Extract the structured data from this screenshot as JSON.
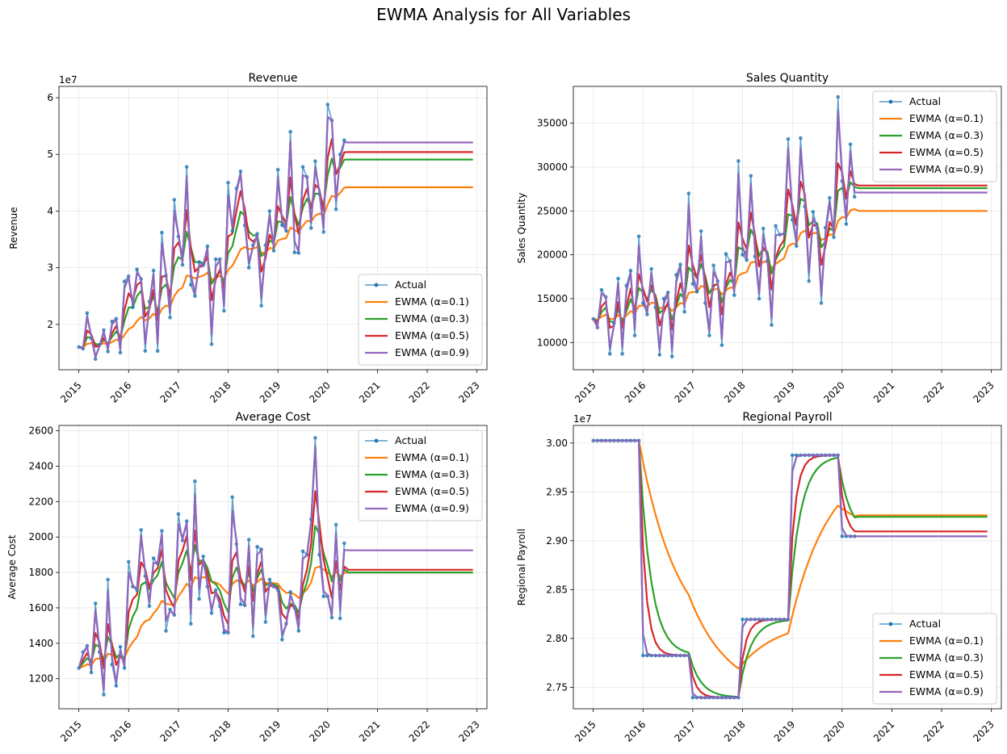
{
  "suptitle": "EWMA Analysis for All Variables",
  "legend_labels": [
    "Actual",
    "EWMA (α=0.1)",
    "EWMA (α=0.3)",
    "EWMA (α=0.5)",
    "EWMA (α=0.9)"
  ],
  "colors": {
    "actual": "#1f77b4",
    "a01": "#ff7f0e",
    "a03": "#2ca02c",
    "a05": "#d62728",
    "a09": "#9467bd"
  },
  "chart_data": [
    {
      "type": "line",
      "title": "Revenue",
      "ylabel": "Revenue",
      "xlabel": "",
      "x_ticks": [
        "2015",
        "2016",
        "2017",
        "2018",
        "2019",
        "2020",
        "2021",
        "2022",
        "2023"
      ],
      "y_ticks": [
        "2",
        "3",
        "4",
        "5",
        "6"
      ],
      "y_tick_values": [
        20000000.0,
        30000000.0,
        40000000.0,
        50000000.0,
        60000000.0
      ],
      "offset_text": "1e7",
      "xlim": [
        2014.6,
        2023.2
      ],
      "ylim": [
        12000000.0,
        62000000.0
      ],
      "legend_loc": "lower right",
      "grid": true,
      "actual": [
        16.0,
        15.7,
        22.0,
        17.5,
        13.9,
        16.4,
        19.0,
        15.2,
        20.5,
        21.0,
        15.0,
        27.6,
        28.5,
        23.0,
        29.7,
        28.0,
        15.3,
        24.0,
        29.5,
        15.3,
        36.2,
        28.6,
        21.2,
        42.0,
        35.5,
        30.5,
        47.8,
        27.0,
        25.0,
        31.0,
        30.5,
        33.8,
        16.5,
        31.5,
        31.5,
        22.4,
        45.0,
        36.5,
        44.0,
        47.0,
        37.5,
        30.0,
        34.0,
        36.0,
        23.3,
        34.0,
        40.0,
        33.0,
        47.3,
        37.5,
        36.5,
        54.0,
        32.7,
        32.6,
        47.8,
        46.0,
        37.0,
        48.8,
        43.0,
        36.3,
        58.8,
        56.0,
        40.3,
        50.0,
        52.5
      ],
      "forecast": {
        "a01": 44.2,
        "a03": 49.1,
        "a05": 50.4,
        "a09": 52.1,
        "until": 2022.92
      },
      "scale": 1000000.0
    },
    {
      "type": "line",
      "title": "Sales Quantity",
      "ylabel": "Sales Quantity",
      "xlabel": "",
      "x_ticks": [
        "2015",
        "2016",
        "2017",
        "2018",
        "2019",
        "2020",
        "2021",
        "2022",
        "2023"
      ],
      "y_ticks": [
        "10000",
        "15000",
        "20000",
        "25000",
        "30000",
        "35000"
      ],
      "y_tick_values": [
        10000,
        15000,
        20000,
        25000,
        30000,
        35000
      ],
      "offset_text": "",
      "xlim": [
        2014.6,
        2023.2
      ],
      "ylim": [
        6900,
        39200
      ],
      "legend_loc": "upper right",
      "grid": true,
      "actual": [
        12700,
        11700,
        16000,
        15200,
        8700,
        12200,
        17300,
        8700,
        16500,
        18200,
        10800,
        22100,
        14500,
        13200,
        18400,
        14000,
        8600,
        15000,
        15700,
        8400,
        17700,
        18900,
        13500,
        27000,
        16700,
        15800,
        22700,
        14500,
        10800,
        18800,
        17000,
        9700,
        20100,
        19300,
        15400,
        30700,
        20000,
        19400,
        29000,
        19800,
        15000,
        23000,
        19300,
        12000,
        23300,
        22300,
        22400,
        33200,
        24000,
        21000,
        33300,
        25500,
        17000,
        24900,
        23000,
        14500,
        23100,
        26500,
        22000,
        38000,
        28400,
        23500,
        32600,
        26600
      ],
      "forecast": {
        "a01": 25000,
        "a03": 27600,
        "a05": 27900,
        "a09": 27100,
        "until": 2022.92
      },
      "scale": 1
    },
    {
      "type": "line",
      "title": "Average Cost",
      "ylabel": "Average Cost",
      "xlabel": "",
      "x_ticks": [
        "2015",
        "2016",
        "2017",
        "2018",
        "2019",
        "2020",
        "2021",
        "2022",
        "2023"
      ],
      "y_ticks": [
        "1200",
        "1400",
        "1600",
        "1800",
        "2000",
        "2200",
        "2400",
        "2600"
      ],
      "y_tick_values": [
        1200,
        1400,
        1600,
        1800,
        2000,
        2200,
        2400,
        2600
      ],
      "offset_text": "",
      "xlim": [
        2014.6,
        2023.2
      ],
      "ylim": [
        1030,
        2630
      ],
      "legend_loc": "upper right",
      "grid": true,
      "actual": [
        1260,
        1350,
        1385,
        1235,
        1625,
        1350,
        1110,
        1760,
        1280,
        1160,
        1380,
        1260,
        1860,
        1720,
        1700,
        2040,
        1780,
        1610,
        1880,
        1850,
        2035,
        1470,
        1590,
        1560,
        2130,
        1980,
        2090,
        1510,
        2315,
        1650,
        1890,
        1720,
        1570,
        1700,
        1610,
        1460,
        1460,
        2225,
        1960,
        1620,
        1615,
        1985,
        1440,
        1945,
        1930,
        1520,
        1760,
        1720,
        1700,
        1420,
        1510,
        1690,
        1600,
        1470,
        1920,
        1900,
        2100,
        2560,
        1900,
        1665,
        1665,
        1545,
        2070,
        1540,
        1965
      ],
      "forecast": {
        "a01": 1800,
        "a03": 1800,
        "a05": 1815,
        "a09": 1925,
        "until": 2022.92
      },
      "scale": 1
    },
    {
      "type": "line",
      "title": "Regional Payroll",
      "ylabel": "Regional Payroll",
      "xlabel": "",
      "x_ticks": [
        "2015",
        "2016",
        "2017",
        "2018",
        "2019",
        "2020",
        "2021",
        "2022",
        "2023"
      ],
      "y_ticks": [
        "2.75",
        "2.80",
        "2.85",
        "2.90",
        "2.95",
        "3.00"
      ],
      "y_tick_values": [
        27500000.0,
        28000000.0,
        28500000.0,
        29000000.0,
        29500000.0,
        30000000.0
      ],
      "offset_text": "1e7",
      "xlim": [
        2014.6,
        2023.2
      ],
      "ylim": [
        27280000.0,
        30180000.0
      ],
      "legend_loc": "lower right",
      "grid": true,
      "segments": [
        {
          "from": 2015.0,
          "to": 2015.92,
          "value": 30025000.0
        },
        {
          "from": 2016.0,
          "to": 2016.92,
          "value": 27825000.0
        },
        {
          "from": 2017.0,
          "to": 2017.92,
          "value": 27395000.0
        },
        {
          "from": 2018.0,
          "to": 2018.92,
          "value": 28195000.0
        },
        {
          "from": 2019.0,
          "to": 2019.92,
          "value": 29875000.0
        },
        {
          "from": 2020.0,
          "to": 2020.25,
          "value": 29045000.0
        }
      ],
      "forecast": {
        "a01": 29260000.0,
        "a03": 29245000.0,
        "a05": 29095000.0,
        "a09": 29045000.0,
        "until": 2022.92
      },
      "scale": 1
    }
  ]
}
